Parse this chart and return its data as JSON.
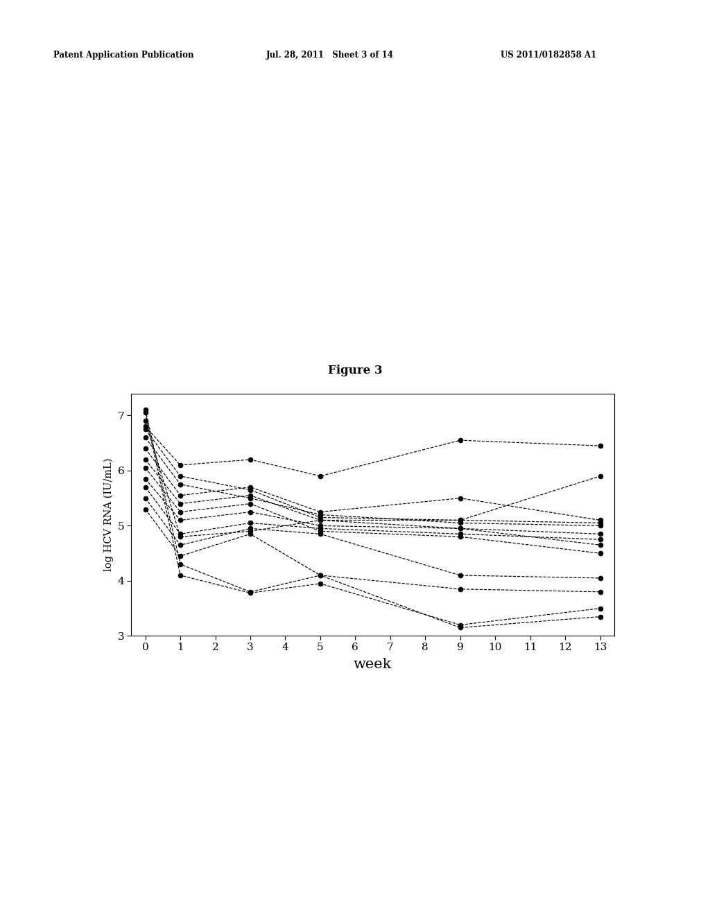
{
  "title": "Figure 3",
  "xlabel": "week",
  "ylabel": "log HCV RNA (IU/mL)",
  "xlim": [
    -0.4,
    13.4
  ],
  "ylim": [
    3.0,
    7.4
  ],
  "yticks": [
    3,
    4,
    5,
    6,
    7
  ],
  "xtick_labels": [
    "0",
    "1",
    "2",
    "3",
    "4",
    "5",
    "6",
    "7",
    "8",
    "9",
    "10",
    "11",
    "12",
    "13"
  ],
  "xtick_vals": [
    0,
    1,
    2,
    3,
    4,
    5,
    6,
    7,
    8,
    9,
    10,
    11,
    12,
    13
  ],
  "header_left": "Patent Application Publication",
  "header_mid": "Jul. 28, 2011   Sheet 3 of 14",
  "header_right": "US 2011/0182858 A1",
  "series_data": [
    {
      "weeks": [
        0,
        1,
        3,
        5,
        9,
        13
      ],
      "vals": [
        7.1,
        4.3,
        3.8,
        4.1,
        3.15,
        3.35
      ]
    },
    {
      "weeks": [
        0,
        1,
        3,
        5,
        9,
        13
      ],
      "vals": [
        7.05,
        4.1,
        3.78,
        3.95,
        3.2,
        3.5
      ]
    },
    {
      "weeks": [
        0,
        1,
        3,
        5,
        9,
        13
      ],
      "vals": [
        6.9,
        4.8,
        4.9,
        5.1,
        5.1,
        5.9
      ]
    },
    {
      "weeks": [
        0,
        1,
        3,
        5,
        9,
        13
      ],
      "vals": [
        6.75,
        5.9,
        5.65,
        5.15,
        5.1,
        5.05
      ]
    },
    {
      "weeks": [
        0,
        1,
        3,
        5,
        9,
        13
      ],
      "vals": [
        6.6,
        5.75,
        5.5,
        5.2,
        5.05,
        5.0
      ]
    },
    {
      "weeks": [
        0,
        1,
        3,
        5,
        9,
        13
      ],
      "vals": [
        6.4,
        5.55,
        5.7,
        5.25,
        5.5,
        5.1
      ]
    },
    {
      "weeks": [
        0,
        1,
        3,
        5,
        9,
        13
      ],
      "vals": [
        6.2,
        5.4,
        5.55,
        5.1,
        4.95,
        4.65
      ]
    },
    {
      "weeks": [
        0,
        1,
        3,
        5,
        9,
        13
      ],
      "vals": [
        6.05,
        5.25,
        5.4,
        4.9,
        4.8,
        4.5
      ]
    },
    {
      "weeks": [
        0,
        1,
        3,
        5,
        9,
        13
      ],
      "vals": [
        5.85,
        5.1,
        5.25,
        5.0,
        4.95,
        4.85
      ]
    },
    {
      "weeks": [
        0,
        1,
        3,
        5,
        9,
        13
      ],
      "vals": [
        5.7,
        4.85,
        5.05,
        4.95,
        4.85,
        4.75
      ]
    },
    {
      "weeks": [
        0,
        1,
        3,
        5,
        9,
        13
      ],
      "vals": [
        5.5,
        4.65,
        4.95,
        4.85,
        4.1,
        4.05
      ]
    },
    {
      "weeks": [
        0,
        1,
        3,
        5,
        9,
        13
      ],
      "vals": [
        5.3,
        4.45,
        4.85,
        4.1,
        3.85,
        3.8
      ]
    },
    {
      "weeks": [
        0,
        1,
        3,
        5,
        9,
        13
      ],
      "vals": [
        6.8,
        6.1,
        6.2,
        5.9,
        6.55,
        6.45
      ]
    }
  ],
  "bg_color": "#ffffff",
  "line_color": "#000000",
  "marker_color": "#000000"
}
